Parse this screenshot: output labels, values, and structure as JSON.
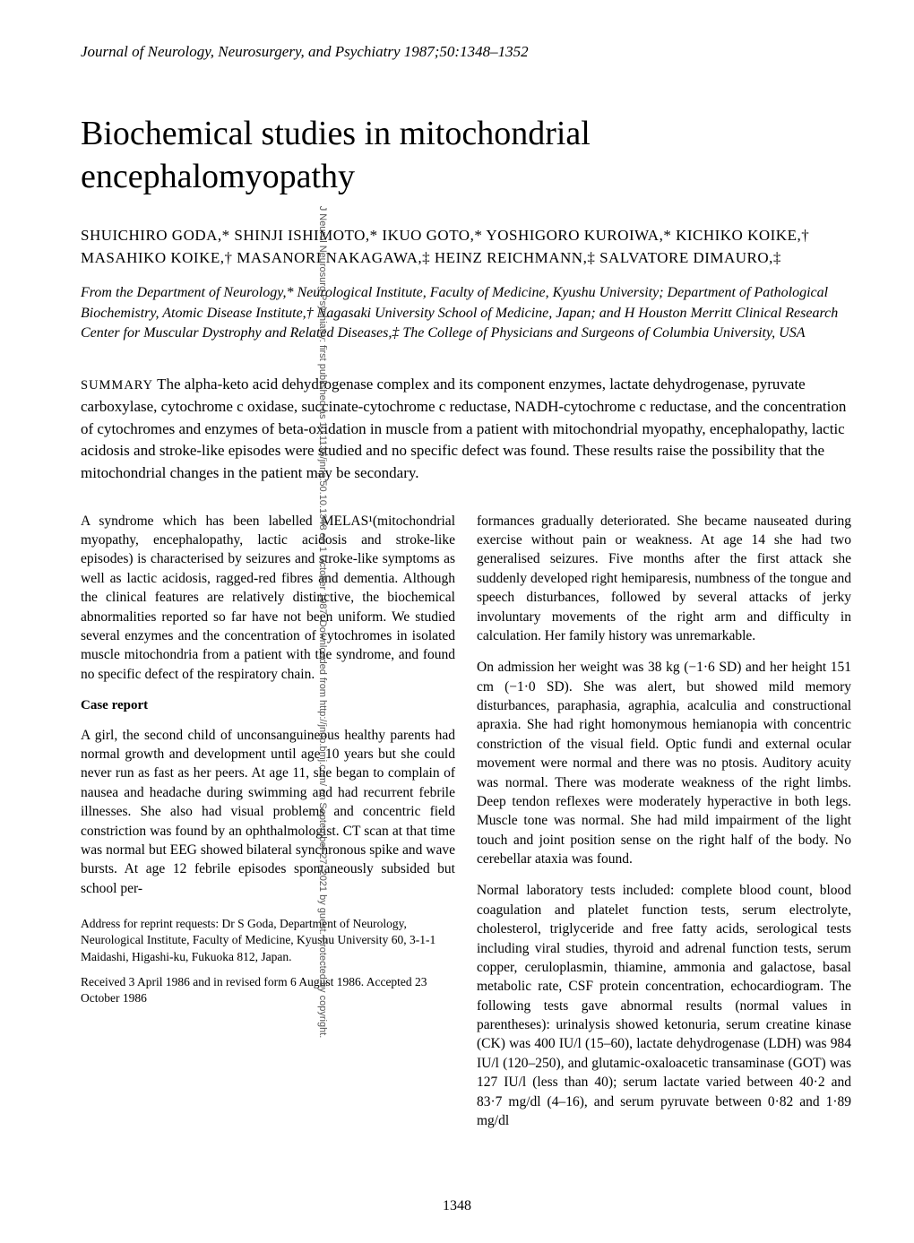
{
  "journal_header": "Journal of Neurology, Neurosurgery, and Psychiatry 1987;50:1348–1352",
  "title": "Biochemical studies in mitochondrial encephalomyopathy",
  "authors": "SHUICHIRO GODA,* SHINJI ISHIMOTO,* IKUO GOTO,* YOSHIGORO KUROIWA,* KICHIKO KOIKE,† MASAHIKO KOIKE,† MASANORI NAKAGAWA,‡ HEINZ REICHMANN,‡ SALVATORE DIMAURO,‡",
  "affiliations": "From the Department of Neurology,* Neurological Institute, Faculty of Medicine, Kyushu University; Department of Pathological Biochemistry, Atomic Disease Institute,† Nagasaki University School of Medicine, Japan; and H Houston Merritt Clinical Research Center for Muscular Dystrophy and Related Diseases,‡ The College of Physicians and Surgeons of Columbia University, USA",
  "summary_label": "SUMMARY",
  "summary_text": "The alpha-keto acid dehydrogenase complex and its component enzymes, lactate dehydrogenase, pyruvate carboxylase, cytochrome c oxidase, succinate-cytochrome c reductase, NADH-cytochrome c reductase, and the concentration of cytochromes and enzymes of beta-oxidation in muscle from a patient with mitochondrial myopathy, encephalopathy, lactic acidosis and stroke-like episodes were studied and no specific defect was found. These results raise the possibility that the mitochondrial changes in the patient may be secondary.",
  "left_col": {
    "intro": "A syndrome which has been labelled MELAS¹(mitochondrial myopathy, encephalopathy, lactic acidosis and stroke-like episodes) is characterised by seizures and stroke-like symptoms as well as lactic acidosis, ragged-red fibres and dementia. Although the clinical features are relatively distinctive, the biochemical abnormalities reported so far have not been uniform. We studied several enzymes and the concentration of cytochromes in isolated muscle mitochondria from a patient with the syndrome, and found no specific defect of the respiratory chain.",
    "case_heading": "Case report",
    "case_text": "A girl, the second child of unconsanguineous healthy parents had normal growth and development until age 10 years but she could never run as fast as her peers. At age 11, she began to complain of nausea and headache during swimming and had recurrent febrile illnesses. She also had visual problems and concentric field constriction was found by an ophthalmologist. CT scan at that time was normal but EEG showed bilateral synchronous spike and wave bursts. At age 12 febrile episodes spontaneously subsided but school per-",
    "address1": "Address for reprint requests: Dr S Goda, Department of Neurology, Neurological Institute, Faculty of Medicine, Kyushu University 60, 3-1-1 Maidashi, Higashi-ku, Fukuoka 812, Japan.",
    "address2": "Received 3 April 1986 and in revised form 6 August 1986. Accepted 23 October 1986"
  },
  "right_col": {
    "p1": "formances gradually deteriorated. She became nauseated during exercise without pain or weakness. At age 14 she had two generalised seizures. Five months after the first attack she suddenly developed right hemiparesis, numbness of the tongue and speech disturbances, followed by several attacks of jerky involuntary movements of the right arm and difficulty in calculation. Her family history was unremarkable.",
    "p2": "On admission her weight was 38 kg (−1·6 SD) and her height 151 cm (−1·0 SD). She was alert, but showed mild memory disturbances, paraphasia, agraphia, acalculia and constructional apraxia. She had right homonymous hemianopia with concentric constriction of the visual field. Optic fundi and external ocular movement were normal and there was no ptosis. Auditory acuity was normal. There was moderate weakness of the right limbs. Deep tendon reflexes were moderately hyperactive in both legs. Muscle tone was normal. She had mild impairment of the light touch and joint position sense on the right half of the body. No cerebellar ataxia was found.",
    "p3": "Normal laboratory tests included: complete blood count, blood coagulation and platelet function tests, serum electrolyte, cholesterol, triglyceride and free fatty acids, serological tests including viral studies, thyroid and adrenal function tests, serum copper, ceruloplasmin, thiamine, ammonia and galactose, basal metabolic rate, CSF protein concentration, echocardiogram. The following tests gave abnormal results (normal values in parentheses): urinalysis showed ketonuria, serum creatine kinase (CK) was 400 IU/l (15–60), lactate dehydrogenase (LDH) was 984 IU/l (120–250), and glutamic-oxaloacetic transaminase (GOT) was 127 IU/l (less than 40); serum lactate varied between 40·2 and 83·7 mg/dl (4–16), and serum pyruvate between 0·82 and 1·89 mg/dl"
  },
  "page_number": "1348",
  "watermark": "J Neurol Neurosurg Psychiatry: first published as 10.1136/jnnp.50.10.1348 on 1 October 1987. Downloaded from http://jnnp.bmj.com/ on September 27, 2021 by guest. Protected by copyright."
}
